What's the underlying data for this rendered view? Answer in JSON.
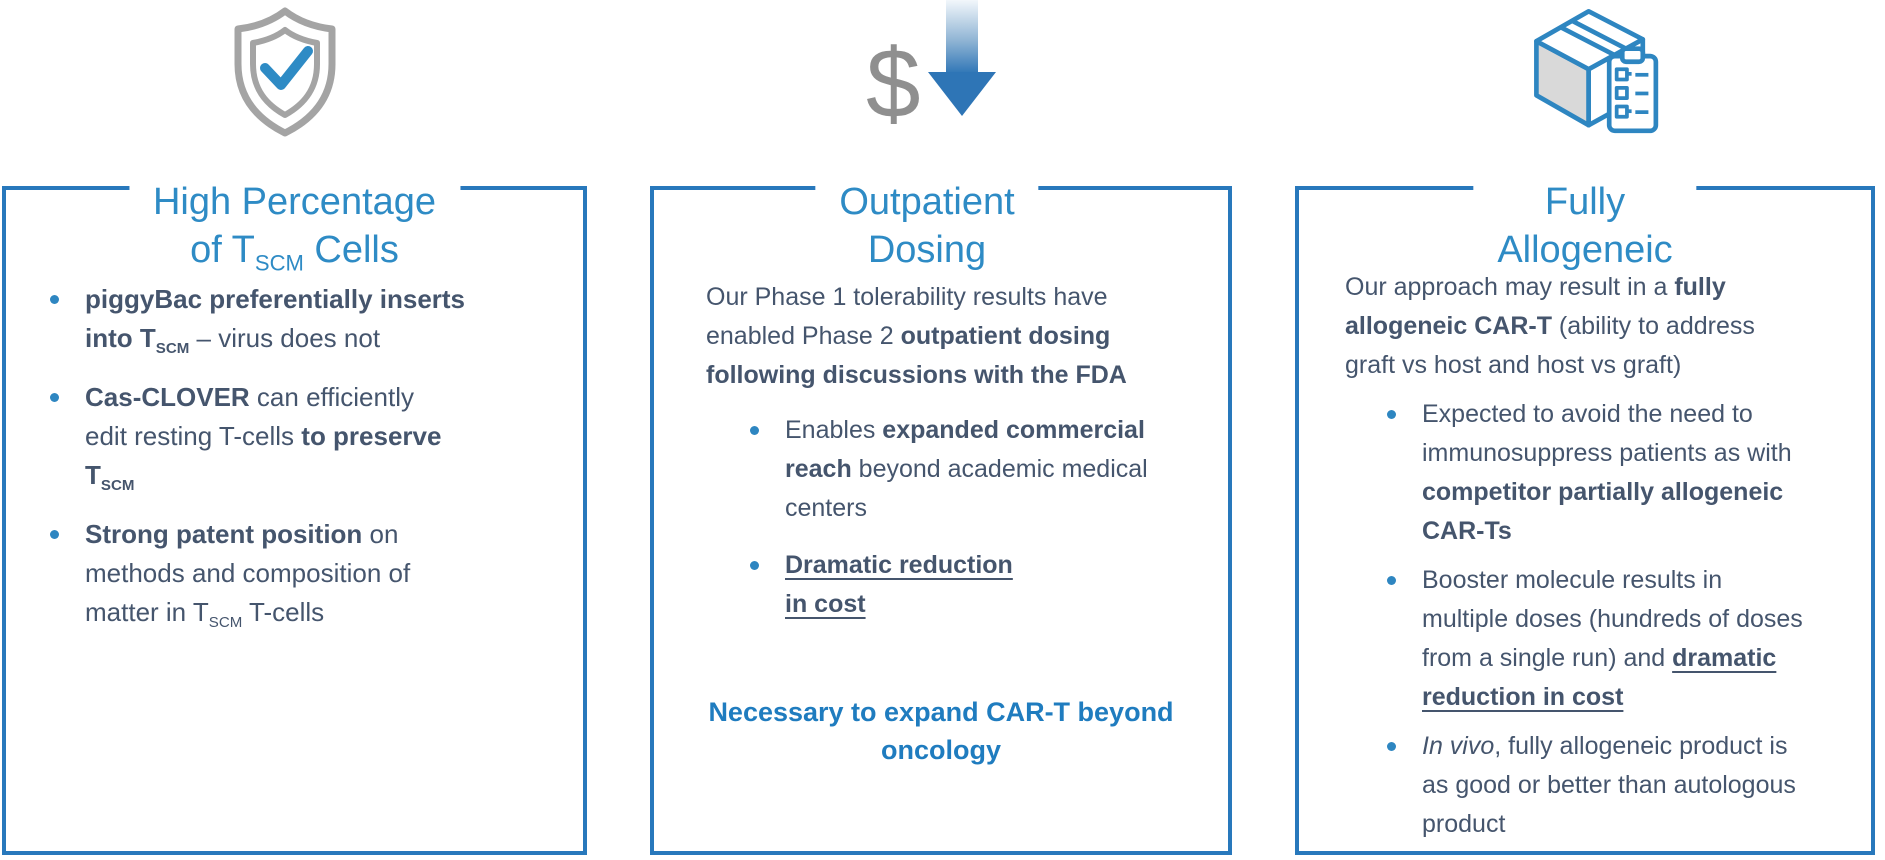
{
  "colors": {
    "border": "#2878BC",
    "title": "#2E8BC5",
    "body": "#45556D",
    "bullet": "#2E86C1",
    "note": "#1F7CBF",
    "icon_gray": "#A4A4A4",
    "dollar_gray": "#8F8F8F",
    "check_blue": "#2E8BC5",
    "arrow_blue": "#2E75B6",
    "arrow_light": "#F2F7FB",
    "cube_blue": "#2E86C1",
    "cube_gray": "#D9D9D9"
  },
  "icons": [
    "shield-check-icon",
    "dollar-down-arrow-icon",
    "product-box-clipboard-icon"
  ],
  "cards": [
    {
      "title_lines": [
        [
          {
            "t": "High Percentage"
          }
        ],
        [
          {
            "t": "of T"
          },
          {
            "t": "SCM",
            "sub": 1
          },
          {
            "t": " Cells"
          }
        ]
      ],
      "bullets": [
        [
          {
            "t": "piggyBac preferentially inserts",
            "b": 1
          },
          {
            "br": 1
          },
          {
            "t": "into T",
            "b": 1
          },
          {
            "t": "SCM",
            "b": 1,
            "sub": 1
          },
          {
            "t": " – virus does not"
          }
        ],
        [
          {
            "t": "Cas-CLOVER",
            "b": 1
          },
          {
            "t": " can efficiently"
          },
          {
            "br": 1
          },
          {
            "t": "edit resting T-cells "
          },
          {
            "t": "to preserve",
            "b": 1
          },
          {
            "br": 1
          },
          {
            "t": "T",
            "b": 1
          },
          {
            "t": "SCM",
            "b": 1,
            "sub": 1
          }
        ],
        [
          {
            "t": "Strong patent position",
            "b": 1
          },
          {
            "t": " on"
          },
          {
            "br": 1
          },
          {
            "t": "methods and composition of"
          },
          {
            "br": 1
          },
          {
            "t": "matter in T"
          },
          {
            "t": "SCM",
            "sub": 1
          },
          {
            "t": " T-cells"
          }
        ]
      ]
    },
    {
      "title_lines": [
        [
          {
            "t": "Outpatient"
          }
        ],
        [
          {
            "t": "Dosing"
          }
        ]
      ],
      "intro": [
        {
          "t": "Our Phase 1 tolerability results have"
        },
        {
          "br": 1
        },
        {
          "t": "enabled Phase 2 "
        },
        {
          "t": "outpatient dosing",
          "b": 1
        },
        {
          "br": 1
        },
        {
          "t": "following discussions with the FDA",
          "b": 1
        }
      ],
      "bullets": [
        [
          {
            "t": "Enables "
          },
          {
            "t": "expanded commercial",
            "b": 1
          },
          {
            "br": 1
          },
          {
            "t": "reach",
            "b": 1
          },
          {
            "t": " beyond academic medical"
          },
          {
            "br": 1
          },
          {
            "t": "centers"
          }
        ],
        [
          {
            "t": "Dramatic reduction",
            "b": 1,
            "u": 1
          },
          {
            "br": 1
          },
          {
            "t": "in cost",
            "b": 1,
            "u": 1
          }
        ]
      ],
      "note": [
        {
          "t": "Necessary to expand CAR-T beyond"
        },
        {
          "br": 1
        },
        {
          "t": "oncology"
        }
      ]
    },
    {
      "title_lines": [
        [
          {
            "t": "Fully"
          }
        ],
        [
          {
            "t": "Allogeneic"
          }
        ]
      ],
      "intro": [
        {
          "t": "Our approach may result in a "
        },
        {
          "t": "fully",
          "b": 1
        },
        {
          "br": 1
        },
        {
          "t": "allogeneic CAR-T",
          "b": 1
        },
        {
          "t": " (ability to address"
        },
        {
          "br": 1
        },
        {
          "t": "graft vs host and host vs graft)"
        }
      ],
      "bullets": [
        [
          {
            "t": "Expected to avoid the need to"
          },
          {
            "br": 1
          },
          {
            "t": "immunosuppress patients as with"
          },
          {
            "br": 1
          },
          {
            "t": "competitor partially allogeneic",
            "b": 1
          },
          {
            "br": 1
          },
          {
            "t": "CAR-Ts",
            "b": 1
          }
        ],
        [
          {
            "t": "Booster molecule results in"
          },
          {
            "br": 1
          },
          {
            "t": "multiple doses (hundreds of doses"
          },
          {
            "br": 1
          },
          {
            "t": "from a single run) and "
          },
          {
            "t": "dramatic",
            "b": 1,
            "u": 1
          },
          {
            "br": 1
          },
          {
            "t": "reduction in cost",
            "b": 1,
            "u": 1
          }
        ],
        [
          {
            "t": "In vivo",
            "i": 1
          },
          {
            "t": ", fully allogeneic product is"
          },
          {
            "br": 1
          },
          {
            "t": "as good or better than autologous"
          },
          {
            "br": 1
          },
          {
            "t": "product"
          }
        ]
      ]
    }
  ]
}
